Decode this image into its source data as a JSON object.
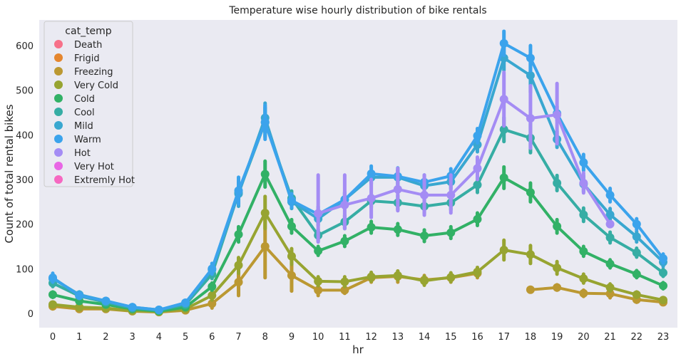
{
  "chart_data": {
    "type": "line",
    "title": "Temperature wise hourly distribution of bike rentals",
    "xlabel": "hr",
    "ylabel": "Count of total rental bikes",
    "categories": [
      "0",
      "1",
      "2",
      "3",
      "4",
      "5",
      "6",
      "7",
      "8",
      "9",
      "10",
      "11",
      "12",
      "13",
      "14",
      "15",
      "16",
      "17",
      "18",
      "19",
      "20",
      "21",
      "22",
      "23"
    ],
    "yticks": [
      0,
      100,
      200,
      300,
      400,
      500,
      600
    ],
    "ylim": [
      -30,
      650
    ],
    "grid": false,
    "background": "#eaeaf2",
    "legend": {
      "title": "cat_temp",
      "placement": "top-left",
      "entries": [
        "Death",
        "Frigid",
        "Freezing",
        "Very Cold",
        "Cold",
        "Cool",
        "Mild",
        "Warm",
        "Hot",
        "Very Hot",
        "Extremly Hot"
      ]
    },
    "series": [
      {
        "name": "Death",
        "color": "#f77189",
        "values": [
          null,
          null,
          null,
          null,
          null,
          null,
          null,
          null,
          null,
          null,
          null,
          null,
          null,
          null,
          null,
          null,
          null,
          null,
          null,
          null,
          null,
          null,
          null,
          null
        ],
        "ci": []
      },
      {
        "name": "Frigid",
        "color": "#e5862e",
        "values": [
          null,
          null,
          null,
          null,
          null,
          null,
          null,
          null,
          null,
          null,
          null,
          null,
          null,
          null,
          null,
          null,
          null,
          null,
          null,
          null,
          null,
          null,
          null,
          null
        ],
        "ci": []
      },
      {
        "name": "Freezing",
        "color": "#bb9832",
        "values": [
          16,
          10,
          10,
          5,
          3,
          7,
          22,
          70,
          150,
          85,
          52,
          52,
          80,
          83,
          75,
          80,
          90,
          null,
          53,
          58,
          45,
          44,
          31,
          25
        ],
        "ci": [
          [
            10,
            20
          ],
          [
            7,
            14
          ],
          [
            7,
            13
          ],
          [
            2,
            8
          ],
          [
            1,
            5
          ],
          [
            4,
            10
          ],
          [
            12,
            32
          ],
          [
            40,
            100
          ],
          [
            80,
            230
          ],
          [
            50,
            120
          ],
          [
            40,
            65
          ],
          [
            45,
            60
          ],
          [
            70,
            90
          ],
          [
            70,
            95
          ],
          [
            65,
            85
          ],
          [
            70,
            90
          ],
          [
            80,
            100
          ],
          null,
          [
            48,
            58
          ],
          [
            52,
            64
          ],
          [
            38,
            52
          ],
          [
            35,
            52
          ],
          [
            25,
            37
          ],
          [
            20,
            30
          ]
        ]
      },
      {
        "name": "Very Cold",
        "color": "#97a431",
        "values": [
          20,
          14,
          12,
          6,
          4,
          10,
          40,
          108,
          225,
          128,
          72,
          71,
          82,
          85,
          73,
          81,
          93,
          142,
          132,
          102,
          78,
          58,
          42,
          30
        ],
        "ci": [
          [
            15,
            25
          ],
          [
            10,
            18
          ],
          [
            9,
            15
          ],
          [
            4,
            8
          ],
          [
            2,
            6
          ],
          [
            7,
            13
          ],
          [
            30,
            50
          ],
          [
            90,
            125
          ],
          [
            190,
            262
          ],
          [
            110,
            145
          ],
          [
            62,
            82
          ],
          [
            60,
            82
          ],
          [
            72,
            92
          ],
          [
            75,
            95
          ],
          [
            63,
            83
          ],
          [
            71,
            91
          ],
          [
            83,
            103
          ],
          [
            120,
            164
          ],
          [
            112,
            152
          ],
          [
            88,
            116
          ],
          [
            68,
            88
          ],
          [
            50,
            66
          ],
          [
            36,
            48
          ],
          [
            25,
            35
          ]
        ]
      },
      {
        "name": "Cold",
        "color": "#32b166",
        "values": [
          42,
          28,
          20,
          10,
          5,
          14,
          60,
          177,
          312,
          195,
          140,
          162,
          193,
          188,
          174,
          181,
          211,
          304,
          271,
          195,
          139,
          111,
          88,
          62
        ],
        "ci": [
          [
            36,
            48
          ],
          [
            23,
            33
          ],
          [
            16,
            24
          ],
          [
            7,
            13
          ],
          [
            3,
            7
          ],
          [
            11,
            17
          ],
          [
            52,
            68
          ],
          [
            160,
            194
          ],
          [
            283,
            341
          ],
          [
            180,
            210
          ],
          [
            130,
            150
          ],
          [
            150,
            174
          ],
          [
            180,
            206
          ],
          [
            175,
            201
          ],
          [
            161,
            187
          ],
          [
            168,
            194
          ],
          [
            197,
            225
          ],
          [
            280,
            328
          ],
          [
            250,
            292
          ],
          [
            180,
            210
          ],
          [
            128,
            150
          ],
          [
            102,
            120
          ],
          [
            80,
            96
          ],
          [
            55,
            69
          ]
        ]
      },
      {
        "name": "Cool",
        "color": "#36ada4",
        "values": [
          68,
          39,
          25,
          12,
          7,
          20,
          88,
          270,
          428,
          258,
          175,
          205,
          252,
          248,
          240,
          248,
          288,
          412,
          393,
          292,
          221,
          170,
          136,
          91
        ],
        "ci": [
          [
            60,
            76
          ],
          [
            33,
            45
          ],
          [
            20,
            30
          ],
          [
            9,
            15
          ],
          [
            5,
            9
          ],
          [
            16,
            24
          ],
          [
            78,
            98
          ],
          [
            245,
            295
          ],
          [
            395,
            461
          ],
          [
            242,
            274
          ],
          [
            162,
            188
          ],
          [
            190,
            220
          ],
          [
            237,
            267
          ],
          [
            232,
            264
          ],
          [
            224,
            256
          ],
          [
            232,
            264
          ],
          [
            271,
            305
          ],
          [
            385,
            439
          ],
          [
            360,
            426
          ],
          [
            275,
            309
          ],
          [
            206,
            236
          ],
          [
            158,
            182
          ],
          [
            126,
            146
          ],
          [
            83,
            99
          ]
        ]
      },
      {
        "name": "Mild",
        "color": "#39a7d0",
        "values": [
          78,
          42,
          28,
          14,
          8,
          23,
          98,
          268,
          438,
          250,
          212,
          255,
          305,
          305,
          286,
          295,
          378,
          572,
          533,
          390,
          290,
          221,
          172,
          115
        ],
        "ci": [
          [
            70,
            86
          ],
          [
            36,
            48
          ],
          [
            23,
            33
          ],
          [
            10,
            18
          ],
          [
            6,
            10
          ],
          [
            19,
            27
          ],
          [
            88,
            108
          ],
          [
            240,
            296
          ],
          [
            405,
            471
          ],
          [
            235,
            265
          ],
          [
            197,
            227
          ],
          [
            240,
            270
          ],
          [
            290,
            320
          ],
          [
            288,
            322
          ],
          [
            270,
            302
          ],
          [
            279,
            311
          ],
          [
            362,
            394
          ],
          [
            545,
            599
          ],
          [
            495,
            571
          ],
          [
            372,
            408
          ],
          [
            272,
            308
          ],
          [
            207,
            235
          ],
          [
            160,
            184
          ],
          [
            105,
            125
          ]
        ]
      },
      {
        "name": "Warm",
        "color": "#3ba3ec",
        "values": [
          80,
          40,
          28,
          14,
          8,
          24,
          100,
          275,
          428,
          253,
          222,
          255,
          313,
          307,
          294,
          308,
          398,
          605,
          572,
          448,
          338,
          265,
          200,
          123
        ],
        "ci": [
          [
            70,
            90
          ],
          [
            34,
            46
          ],
          [
            23,
            33
          ],
          [
            10,
            18
          ],
          [
            6,
            10
          ],
          [
            20,
            28
          ],
          [
            88,
            112
          ],
          [
            245,
            305
          ],
          [
            390,
            466
          ],
          [
            238,
            268
          ],
          [
            205,
            239
          ],
          [
            238,
            272
          ],
          [
            296,
            330
          ],
          [
            288,
            326
          ],
          [
            278,
            310
          ],
          [
            292,
            324
          ],
          [
            382,
            414
          ],
          [
            578,
            632
          ],
          [
            544,
            600
          ],
          [
            432,
            464
          ],
          [
            320,
            356
          ],
          [
            250,
            280
          ],
          [
            188,
            212
          ],
          [
            113,
            133
          ]
        ]
      },
      {
        "name": "Hot",
        "color": "#a48cf4",
        "values": [
          null,
          null,
          null,
          null,
          null,
          null,
          null,
          null,
          null,
          null,
          224,
          243,
          258,
          278,
          265,
          265,
          325,
          480,
          437,
          445,
          292,
          200,
          null,
          null
        ],
        "ci": [
          null,
          null,
          null,
          null,
          null,
          null,
          null,
          null,
          null,
          null,
          [
            160,
            310
          ],
          [
            190,
            310
          ],
          [
            215,
            300
          ],
          [
            230,
            325
          ],
          [
            220,
            310
          ],
          [
            225,
            310
          ],
          [
            300,
            350
          ],
          [
            420,
            540
          ],
          [
            370,
            510
          ],
          [
            380,
            515
          ],
          [
            270,
            315
          ],
          [
            195,
            205
          ],
          null,
          null
        ]
      },
      {
        "name": "Very Hot",
        "color": "#e866e5",
        "values": [
          null,
          null,
          null,
          null,
          null,
          null,
          null,
          null,
          null,
          null,
          null,
          null,
          null,
          null,
          null,
          null,
          null,
          null,
          null,
          null,
          null,
          null,
          null,
          null
        ],
        "ci": []
      },
      {
        "name": "Extremly Hot",
        "color": "#f668c1",
        "values": [
          null,
          null,
          null,
          null,
          null,
          null,
          null,
          null,
          null,
          null,
          null,
          null,
          null,
          null,
          null,
          null,
          null,
          null,
          null,
          null,
          null,
          null,
          null,
          null
        ],
        "ci": []
      }
    ]
  }
}
